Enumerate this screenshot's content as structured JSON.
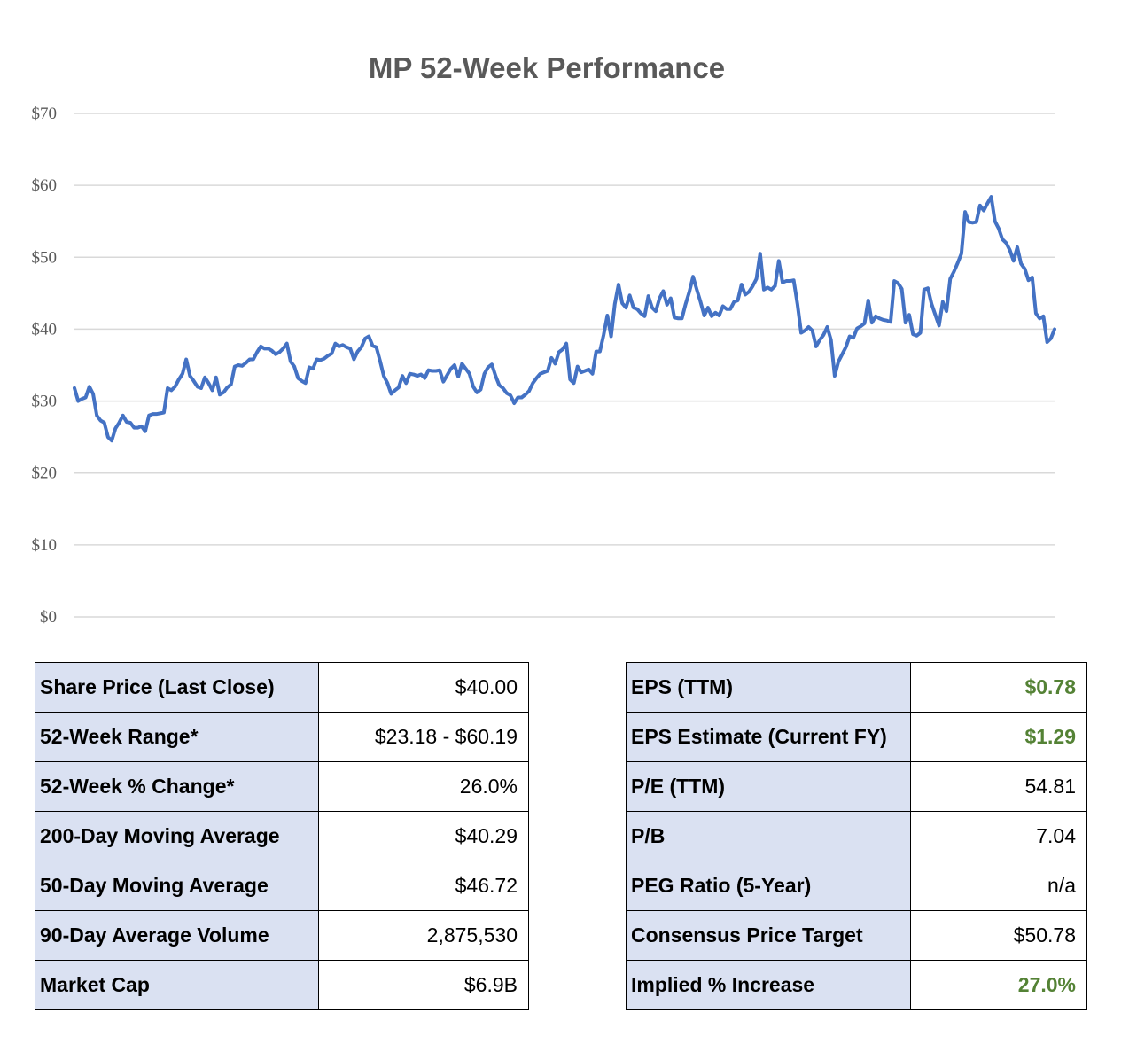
{
  "chart_data": {
    "type": "line",
    "title": "MP 52-Week Performance",
    "xlabel": "",
    "ylabel": "",
    "ylim": [
      0,
      70
    ],
    "yticks": [
      "$0",
      "$10",
      "$20",
      "$30",
      "$40",
      "$50",
      "$60",
      "$70"
    ],
    "yticks_values": [
      0,
      10,
      20,
      30,
      40,
      50,
      60,
      70
    ],
    "grid": true,
    "series": [
      {
        "name": "MP",
        "color": "#4472c4",
        "values": [
          31.8,
          30.0,
          30.3,
          30.5,
          32.0,
          31.0,
          28.0,
          27.3,
          27.0,
          25.0,
          24.5,
          26.2,
          27.0,
          28.0,
          27.1,
          27.0,
          26.3,
          26.3,
          26.5,
          25.8,
          28.0,
          28.2,
          28.2,
          28.3,
          28.4,
          31.8,
          31.5,
          32.0,
          33.0,
          33.8,
          35.8,
          33.5,
          32.8,
          32.0,
          31.8,
          33.3,
          32.5,
          31.5,
          33.3,
          30.9,
          31.2,
          31.9,
          32.3,
          34.8,
          35.0,
          34.9,
          35.3,
          35.8,
          35.8,
          36.8,
          37.6,
          37.3,
          37.3,
          37.0,
          36.5,
          36.8,
          37.3,
          38.0,
          35.5,
          34.8,
          33.2,
          32.8,
          32.5,
          34.7,
          34.5,
          35.8,
          35.7,
          35.9,
          36.3,
          36.6,
          38.0,
          37.6,
          37.8,
          37.5,
          37.3,
          35.8,
          36.9,
          37.5,
          38.7,
          39.0,
          37.7,
          37.5,
          35.6,
          33.5,
          32.5,
          31.0,
          31.5,
          31.9,
          33.5,
          32.5,
          33.8,
          33.7,
          33.5,
          33.7,
          33.2,
          34.3,
          34.2,
          34.2,
          34.3,
          32.7,
          33.6,
          34.5,
          35.0,
          33.4,
          35.2,
          34.5,
          33.8,
          32.0,
          31.2,
          31.6,
          33.8,
          34.7,
          35.1,
          33.5,
          32.2,
          31.8,
          31.1,
          30.8,
          29.7,
          30.5,
          30.5,
          30.9,
          31.4,
          32.5,
          33.2,
          33.8,
          34.0,
          34.2,
          36.0,
          35.2,
          36.8,
          37.2,
          38.0,
          33.0,
          32.5,
          34.8,
          34.0,
          34.2,
          34.4,
          33.8,
          36.9,
          36.9,
          39.2,
          41.9,
          39.0,
          43.5,
          46.2,
          43.6,
          43.0,
          44.7,
          43.0,
          42.8,
          42.2,
          41.8,
          44.6,
          43.0,
          42.5,
          44.3,
          45.3,
          43.4,
          44.3,
          41.6,
          41.5,
          41.5,
          43.5,
          45.2,
          47.3,
          45.5,
          43.8,
          41.9,
          43.0,
          41.8,
          42.3,
          41.9,
          43.2,
          42.8,
          42.8,
          43.8,
          44.0,
          46.2,
          44.8,
          45.2,
          46.0,
          47.0,
          50.5,
          45.5,
          45.8,
          45.5,
          46.0,
          49.5,
          46.5,
          46.7,
          46.7,
          46.8,
          43.5,
          39.5,
          39.8,
          40.3,
          39.8,
          37.6,
          38.5,
          39.2,
          40.3,
          38.5,
          33.5,
          35.5,
          36.5,
          37.5,
          39.0,
          38.8,
          40.1,
          40.4,
          40.8,
          44.0,
          40.9,
          41.8,
          41.5,
          41.3,
          41.2,
          41.0,
          46.7,
          46.4,
          45.6,
          40.9,
          42.0,
          39.3,
          39.1,
          39.5,
          45.5,
          45.7,
          43.5,
          42.0,
          40.5,
          43.8,
          42.5,
          47.0,
          48.0,
          49.2,
          50.5,
          56.3,
          54.9,
          54.8,
          54.9,
          57.2,
          56.5,
          57.5,
          58.4,
          55.0,
          54.0,
          52.5,
          52.0,
          51.0,
          49.5,
          51.4,
          49.1,
          48.4,
          46.8,
          47.2,
          42.2,
          41.5,
          41.8,
          38.2,
          38.7,
          40.0
        ]
      }
    ]
  },
  "stats_left": [
    {
      "label": "Share Price (Last Close)",
      "value": "$40.00",
      "highlight": false
    },
    {
      "label": "52-Week Range*",
      "value": "$23.18 - $60.19",
      "highlight": false
    },
    {
      "label": "52-Week % Change*",
      "value": "26.0%",
      "highlight": false
    },
    {
      "label": "200-Day Moving Average",
      "value": "$40.29",
      "highlight": false
    },
    {
      "label": "50-Day Moving Average",
      "value": "$46.72",
      "highlight": false
    },
    {
      "label": "90-Day Average Volume",
      "value": "2,875,530",
      "highlight": false
    },
    {
      "label": "Market Cap",
      "value": "$6.9B",
      "highlight": false
    }
  ],
  "stats_right": [
    {
      "label": "EPS (TTM)",
      "value": "$0.78",
      "highlight": true
    },
    {
      "label": "EPS Estimate (Current FY)",
      "value": "$1.29",
      "highlight": true
    },
    {
      "label": "P/E (TTM)",
      "value": "54.81",
      "highlight": false
    },
    {
      "label": "P/B",
      "value": "7.04",
      "highlight": false
    },
    {
      "label": "PEG Ratio (5-Year)",
      "value": "n/a",
      "highlight": false
    },
    {
      "label": "Consensus Price Target",
      "value": "$50.78",
      "highlight": false
    },
    {
      "label": "Implied % Increase",
      "value": "27.0%",
      "highlight": true
    }
  ],
  "colors": {
    "line": "#4472c4",
    "label_bg": "#dae1f2",
    "positive": "#548235",
    "grid": "#d9d9d9",
    "axis_text": "#595959"
  }
}
